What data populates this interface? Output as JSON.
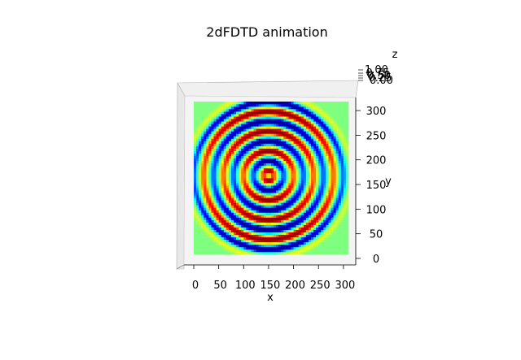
{
  "chart_data": {
    "type": "heatmap",
    "title": "2dFDTD animation",
    "xlabel": "x",
    "ylabel": "y",
    "zlabel": "z",
    "xlim": [
      0,
      310
    ],
    "ylim": [
      0,
      310
    ],
    "xticks": [
      "0",
      "50",
      "100",
      "150",
      "200",
      "250",
      "300"
    ],
    "yticks": [
      "0",
      "50",
      "100",
      "150",
      "200",
      "250",
      "300"
    ],
    "zticks": [
      "1.00",
      "0.75",
      "0.50",
      "0.25",
      "0.00"
    ],
    "source": {
      "x": 150,
      "y": 160
    },
    "wavelength": 40,
    "colormap": [
      "#00007f",
      "#0000ff",
      "#00ffff",
      "#7fff7f",
      "#ffff00",
      "#ff0000",
      "#7f0000"
    ]
  }
}
